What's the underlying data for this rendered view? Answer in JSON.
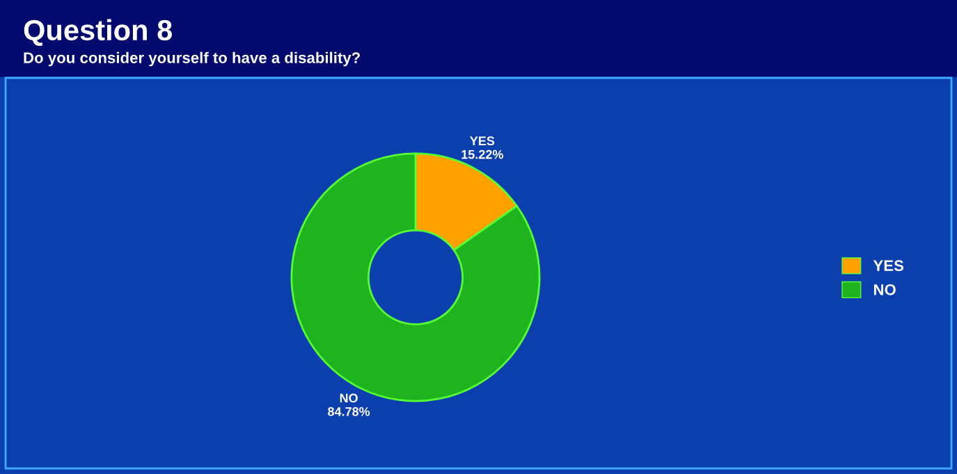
{
  "chart_data": {
    "type": "donut",
    "title": "Question 8",
    "subtitle": "Do you consider yourself to have a disability?",
    "categories": [
      "YES",
      "NO"
    ],
    "values": [
      15.22,
      84.78
    ],
    "value_labels": [
      "15.22%",
      "84.78%"
    ],
    "colors": [
      "#ffa200",
      "#1fb31f"
    ],
    "legend": "right"
  }
}
